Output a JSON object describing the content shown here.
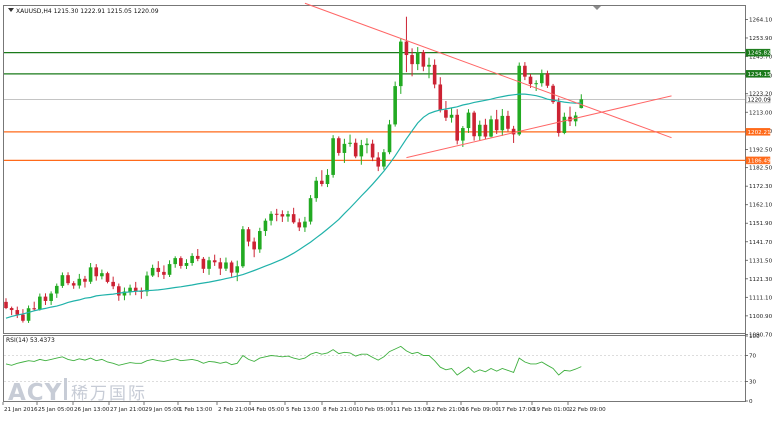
{
  "header": {
    "instrument_info": "XAUUSD,H4  1215.30 1222.91 1215.05 1220.09",
    "rsi_label": "RSI(14) 53.4373"
  },
  "watermark": {
    "brand": "ACY",
    "chinese": "稀万国际"
  },
  "colors": {
    "bull": "#22aa22",
    "bear": "#cc2233",
    "ma": "#20b2aa",
    "trendline": "#ff6666",
    "support_resistance_green": "#1a7a1a",
    "support_resistance_orange": "#ff6a1a",
    "current_price_line": "#b0b0b0",
    "rsi_line": "#40b040",
    "level_line": "#bbbbbb"
  },
  "chart_data": {
    "type": "candlestick",
    "symbol": "XAUUSD",
    "timeframe": "H4",
    "ylim": [
      1090.7,
      1271.5
    ],
    "y_ticks": [
      1264.1,
      1253.9,
      1243.7,
      1233.3,
      1223.2,
      1213.0,
      1202.7,
      1192.5,
      1182.5,
      1172.3,
      1162.1,
      1151.9,
      1141.7,
      1131.5,
      1121.3,
      1111.1,
      1100.9,
      1090.7
    ],
    "x_ticks": [
      "21 Jan 2016",
      "25 Jan 05:00",
      "26 Jan 13:00",
      "27 Jan 21:00",
      "29 Jan 05:00",
      "1 Feb 13:00",
      "2 Feb 21:00",
      "4 Feb 05:00",
      "5 Feb 13:00",
      "8 Feb 21:00",
      "10 Feb 05:00",
      "11 Feb 13:00",
      "12 Feb 21:00",
      "16 Feb 09:00",
      "17 Feb 17:00",
      "19 Feb 01:00",
      "22 Feb 09:00"
    ],
    "levels": [
      {
        "name": "resistance",
        "value": 1245.82,
        "label": "1245.82",
        "color": "#1a7a1a"
      },
      {
        "name": "resistance",
        "value": 1234.15,
        "label": "1234.15",
        "color": "#1a7a1a"
      },
      {
        "name": "current",
        "value": 1220.09,
        "label": "1220.09",
        "color": "#b0b0b0"
      },
      {
        "name": "support",
        "value": 1202.21,
        "label": "1202.21",
        "color": "#ff6a1a"
      },
      {
        "name": "support",
        "value": 1186.49,
        "label": "1186.49",
        "color": "#ff6a1a"
      }
    ],
    "trendlines": [
      {
        "name": "descending",
        "x0": 53,
        "y0": 1273,
        "x1": 118,
        "y1": 1199
      },
      {
        "name": "ascending",
        "x0": 71,
        "y0": 1188,
        "x1": 118,
        "y1": 1222
      }
    ],
    "candles": [
      [
        1108.6,
        1110.6,
        1104.6,
        1105.2
      ],
      [
        1105.2,
        1106.0,
        1101.3,
        1104.1
      ],
      [
        1104.1,
        1106.0,
        1099.7,
        1101.6
      ],
      [
        1101.6,
        1104.6,
        1097.2,
        1098.2
      ],
      [
        1098.2,
        1106.6,
        1097.0,
        1105.1
      ],
      [
        1105.1,
        1108.7,
        1103.9,
        1104.5
      ],
      [
        1104.5,
        1113.2,
        1103.8,
        1111.5
      ],
      [
        1111.5,
        1113.3,
        1106.9,
        1109.1
      ],
      [
        1109.1,
        1114.4,
        1106.9,
        1113.2
      ],
      [
        1113.2,
        1118.7,
        1110.8,
        1117.4
      ],
      [
        1117.4,
        1124.8,
        1116.3,
        1123.3
      ],
      [
        1123.3,
        1124.9,
        1117.8,
        1118.9
      ],
      [
        1118.9,
        1120.0,
        1115.8,
        1117.6
      ],
      [
        1117.6,
        1124.0,
        1115.9,
        1121.3
      ],
      [
        1121.3,
        1122.9,
        1116.5,
        1119.7
      ],
      [
        1119.7,
        1130.0,
        1118.5,
        1127.6
      ],
      [
        1127.6,
        1129.4,
        1120.3,
        1122.7
      ],
      [
        1122.7,
        1126.4,
        1121.0,
        1124.4
      ],
      [
        1124.4,
        1125.2,
        1118.8,
        1119.6
      ],
      [
        1119.6,
        1122.5,
        1115.6,
        1117.2
      ],
      [
        1117.2,
        1118.7,
        1109.2,
        1112.1
      ],
      [
        1112.1,
        1116.5,
        1109.5,
        1114.3
      ],
      [
        1114.3,
        1118.1,
        1112.2,
        1116.4
      ],
      [
        1116.4,
        1119.6,
        1112.3,
        1114.6
      ],
      [
        1114.6,
        1116.5,
        1110.3,
        1114.3
      ],
      [
        1114.3,
        1125.3,
        1111.8,
        1123.1
      ],
      [
        1123.1,
        1129.1,
        1122.3,
        1127.3
      ],
      [
        1127.3,
        1131.0,
        1122.2,
        1125.1
      ],
      [
        1125.1,
        1128.7,
        1121.2,
        1123.5
      ],
      [
        1123.5,
        1131.5,
        1122.3,
        1129.4
      ],
      [
        1129.4,
        1133.7,
        1127.4,
        1132.7
      ],
      [
        1132.7,
        1133.7,
        1126.9,
        1128.4
      ],
      [
        1128.4,
        1132.1,
        1126.7,
        1130.0
      ],
      [
        1130.0,
        1135.4,
        1128.5,
        1133.9
      ],
      [
        1133.9,
        1137.7,
        1131.0,
        1132.3
      ],
      [
        1132.3,
        1133.3,
        1124.5,
        1126.8
      ],
      [
        1126.8,
        1133.4,
        1123.5,
        1131.5
      ],
      [
        1131.5,
        1134.6,
        1128.4,
        1130.4
      ],
      [
        1130.4,
        1132.8,
        1123.4,
        1126.9
      ],
      [
        1126.9,
        1133.0,
        1125.6,
        1130.3
      ],
      [
        1130.3,
        1131.3,
        1122.4,
        1124.7
      ],
      [
        1124.7,
        1131.3,
        1120.0,
        1128.2
      ],
      [
        1128.2,
        1150.3,
        1127.3,
        1148.6
      ],
      [
        1148.6,
        1149.8,
        1139.2,
        1141.8
      ],
      [
        1141.8,
        1144.0,
        1133.2,
        1137.5
      ],
      [
        1137.5,
        1149.4,
        1135.6,
        1147.6
      ],
      [
        1147.6,
        1154.5,
        1144.9,
        1153.3
      ],
      [
        1153.3,
        1158.5,
        1150.7,
        1157.1
      ],
      [
        1157.1,
        1159.8,
        1153.0,
        1156.9
      ],
      [
        1156.9,
        1159.0,
        1152.6,
        1155.6
      ],
      [
        1155.6,
        1158.7,
        1152.7,
        1156.9
      ],
      [
        1156.9,
        1160.4,
        1151.6,
        1152.4
      ],
      [
        1152.4,
        1154.5,
        1147.6,
        1149.6
      ],
      [
        1149.6,
        1155.4,
        1147.1,
        1152.8
      ],
      [
        1152.8,
        1167.4,
        1151.2,
        1165.7
      ],
      [
        1165.7,
        1177.4,
        1163.7,
        1175.3
      ],
      [
        1175.3,
        1181.1,
        1172.2,
        1173.5
      ],
      [
        1173.5,
        1181.7,
        1171.8,
        1178.5
      ],
      [
        1178.5,
        1200.4,
        1177.0,
        1198.7
      ],
      [
        1198.7,
        1199.7,
        1189.1,
        1190.6
      ],
      [
        1190.6,
        1198.4,
        1185.1,
        1195.6
      ],
      [
        1195.6,
        1200.7,
        1194.0,
        1196.2
      ],
      [
        1196.2,
        1198.5,
        1187.7,
        1188.7
      ],
      [
        1188.7,
        1197.8,
        1184.1,
        1194.9
      ],
      [
        1194.9,
        1198.7,
        1190.4,
        1195.7
      ],
      [
        1195.7,
        1197.9,
        1186.1,
        1188.1
      ],
      [
        1188.1,
        1191.0,
        1180.6,
        1183.1
      ],
      [
        1183.1,
        1192.7,
        1181.4,
        1191.0
      ],
      [
        1191.0,
        1208.8,
        1189.9,
        1206.3
      ],
      [
        1206.3,
        1229.9,
        1205.1,
        1227.4
      ],
      [
        1227.4,
        1253.8,
        1223.1,
        1251.9
      ],
      [
        1251.9,
        1265.6,
        1235.1,
        1244.5
      ],
      [
        1244.5,
        1248.2,
        1232.8,
        1239.5
      ],
      [
        1239.5,
        1248.9,
        1236.2,
        1246.1
      ],
      [
        1246.1,
        1247.3,
        1235.6,
        1238.1
      ],
      [
        1238.1,
        1243.1,
        1231.7,
        1239.1
      ],
      [
        1239.1,
        1242.1,
        1226.2,
        1228.3
      ],
      [
        1228.3,
        1232.3,
        1212.9,
        1214.2
      ],
      [
        1214.2,
        1219.2,
        1208.2,
        1210.0
      ],
      [
        1210.0,
        1215.3,
        1207.3,
        1211.6
      ],
      [
        1211.6,
        1214.7,
        1195.3,
        1197.4
      ],
      [
        1197.4,
        1205.4,
        1193.9,
        1204.3
      ],
      [
        1204.3,
        1214.7,
        1201.6,
        1212.8
      ],
      [
        1212.8,
        1213.8,
        1197.4,
        1199.8
      ],
      [
        1199.8,
        1208.4,
        1197.5,
        1206.1
      ],
      [
        1206.1,
        1209.4,
        1198.1,
        1199.6
      ],
      [
        1199.6,
        1211.1,
        1199.2,
        1209.1
      ],
      [
        1209.1,
        1214.3,
        1201.0,
        1203.1
      ],
      [
        1203.1,
        1214.8,
        1200.0,
        1211.0
      ],
      [
        1211.0,
        1213.8,
        1202.4,
        1203.9
      ],
      [
        1203.9,
        1205.5,
        1196.1,
        1200.8
      ],
      [
        1200.8,
        1240.4,
        1200.0,
        1238.6
      ],
      [
        1238.6,
        1240.6,
        1230.7,
        1232.6
      ],
      [
        1232.6,
        1234.0,
        1226.4,
        1228.5
      ],
      [
        1228.5,
        1230.6,
        1224.7,
        1229.0
      ],
      [
        1229.0,
        1236.5,
        1227.1,
        1234.5
      ],
      [
        1234.5,
        1235.9,
        1226.4,
        1227.6
      ],
      [
        1227.6,
        1228.6,
        1217.6,
        1218.6
      ],
      [
        1218.6,
        1221.0,
        1199.6,
        1201.6
      ],
      [
        1201.6,
        1212.8,
        1200.9,
        1210.5
      ],
      [
        1210.5,
        1216.1,
        1205.4,
        1208.0
      ],
      [
        1208.0,
        1213.2,
        1205.3,
        1211.2
      ],
      [
        1215.3,
        1222.9,
        1215.1,
        1220.1
      ]
    ],
    "ma": [
      1099.6,
      1100.6,
      1101.3,
      1102.0,
      1102.8,
      1103.7,
      1104.4,
      1105.0,
      1105.7,
      1106.3,
      1107.2,
      1108.3,
      1109.1,
      1109.7,
      1110.6,
      1111.0,
      1111.9,
      1112.3,
      1112.6,
      1112.9,
      1113.4,
      1113.8,
      1114.1,
      1114.4,
      1114.6,
      1114.8,
      1115.0,
      1115.2,
      1115.6,
      1116.0,
      1116.5,
      1116.9,
      1117.4,
      1117.9,
      1118.5,
      1119.0,
      1119.5,
      1120.1,
      1120.7,
      1121.4,
      1122.1,
      1122.8,
      1123.6,
      1124.7,
      1125.9,
      1127.1,
      1128.3,
      1129.5,
      1130.8,
      1132.1,
      1133.7,
      1135.4,
      1137.4,
      1139.4,
      1141.5,
      1143.9,
      1146.2,
      1148.7,
      1151.3,
      1154.0,
      1157.2,
      1160.3,
      1163.6,
      1166.9,
      1170.1,
      1173.4,
      1176.9,
      1180.6,
      1184.6,
      1189.0,
      1193.7,
      1198.4,
      1202.8,
      1207.1,
      1210.2,
      1212.3,
      1213.4,
      1214.3,
      1214.8,
      1215.4,
      1216.0,
      1217.0,
      1217.6,
      1218.4,
      1219.0,
      1219.6,
      1220.2,
      1221.0,
      1221.6,
      1222.2,
      1222.6,
      1223.0,
      1223.0,
      1222.6,
      1222.1,
      1221.3,
      1220.2,
      1219.7,
      1219.1,
      1218.6,
      1218.2,
      1218.0,
      1218.1
    ],
    "rsi": {
      "name": "RSI(14)",
      "value": 53.4373,
      "levels": [
        70,
        30
      ],
      "ylim": [
        0,
        100
      ],
      "y_ticks": [
        100,
        70,
        30,
        0
      ],
      "values": [
        57,
        55,
        58,
        60,
        62,
        61,
        64,
        62,
        64,
        66,
        68,
        64,
        62,
        65,
        63,
        66,
        62,
        64,
        60,
        58,
        55,
        57,
        59,
        58,
        58,
        62,
        64,
        62,
        61,
        63,
        65,
        62,
        63,
        64,
        62,
        58,
        61,
        60,
        58,
        60,
        56,
        58,
        70,
        64,
        61,
        66,
        68,
        70,
        69,
        68,
        69,
        66,
        64,
        66,
        72,
        75,
        72,
        74,
        79,
        73,
        75,
        74,
        69,
        72,
        72,
        67,
        63,
        68,
        76,
        80,
        84,
        77,
        73,
        75,
        70,
        70,
        62,
        52,
        48,
        50,
        40,
        46,
        52,
        44,
        48,
        45,
        50,
        46,
        50,
        47,
        44,
        66,
        60,
        57,
        57,
        60,
        55,
        50,
        40,
        47,
        46,
        49,
        53
      ]
    }
  }
}
